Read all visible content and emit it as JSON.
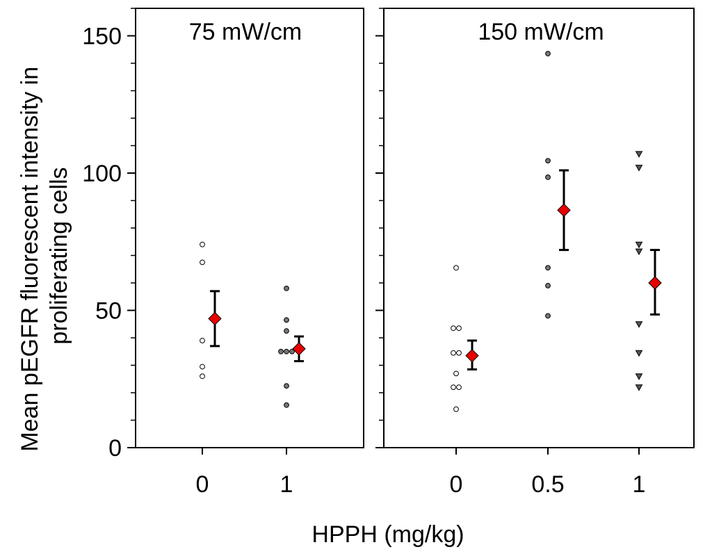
{
  "chart_data": {
    "type": "scatter",
    "ylabel_lines": [
      "Mean pEGFR fluorescent intensity in",
      "proliferating cells"
    ],
    "xlabel": "HPPH (mg/kg)",
    "ylim": [
      0,
      160
    ],
    "yticks": [
      0,
      50,
      100,
      150
    ],
    "yminor_step": 10,
    "colors": {
      "point_open": "#ffffff",
      "point_filled": "#777777",
      "mean": "#e60000",
      "axis": "#000000"
    },
    "panels": [
      {
        "title": "75 mW/cm",
        "x_labels": [
          "0",
          "1"
        ],
        "groups": [
          {
            "x_label": "0",
            "marker": "circle-open",
            "points": [
              74,
              67.5,
              39,
              29.5,
              26
            ],
            "mean": 47,
            "error": [
              37,
              57
            ]
          },
          {
            "x_label": "1",
            "marker": "circle-filled",
            "points": [
              58,
              46.5,
              42.5,
              35,
              35,
              35,
              22.5,
              15.5
            ],
            "mean": 36,
            "error": [
              31.5,
              40.5
            ]
          }
        ]
      },
      {
        "title": "150 mW/cm",
        "x_labels": [
          "0",
          "0.5",
          "1"
        ],
        "groups": [
          {
            "x_label": "0",
            "marker": "circle-open",
            "points": [
              65.5,
              43.5,
              43.5,
              34.5,
              34.5,
              27,
              22,
              22,
              14
            ],
            "mean": 33.5,
            "error": [
              28.5,
              39
            ]
          },
          {
            "x_label": "0.5",
            "marker": "circle-filled",
            "points": [
              143.5,
              104.5,
              98.5,
              65.5,
              59,
              48
            ],
            "mean": 86.5,
            "error": [
              72,
              101
            ]
          },
          {
            "x_label": "1",
            "marker": "triangle-down",
            "points": [
              107,
              102,
              74,
              71.5,
              45,
              34.5,
              26,
              22
            ],
            "mean": 60,
            "error": [
              48.5,
              72
            ]
          }
        ]
      }
    ]
  }
}
